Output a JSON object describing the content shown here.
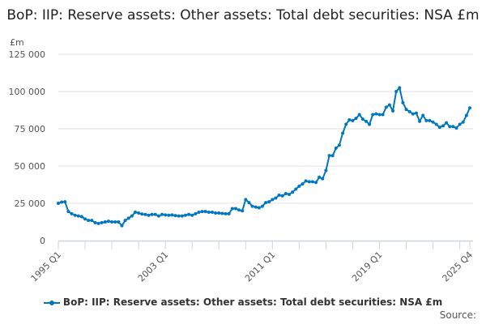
{
  "chart_data": {
    "type": "line",
    "title": "BoP: IIP: Reserve assets: Other assets: Total debt securities: NSA £m",
    "ylabel": "£m",
    "ylim": [
      0,
      125000
    ],
    "yticks": [
      0,
      25000,
      50000,
      75000,
      100000,
      125000
    ],
    "ytick_labels": [
      "0",
      "25 000",
      "50 000",
      "75 000",
      "100 000",
      "125 000"
    ],
    "xtick_labels": [
      "1995 Q1",
      "2003 Q1",
      "2011 Q1",
      "2019 Q1",
      "2025 Q4"
    ],
    "grid": true,
    "legend": "bottom",
    "color": "#0077c0",
    "series": [
      {
        "name": "BoP: IIP: Reserve assets: Other assets: Total debt securities: NSA £m",
        "start": "1995 Q1",
        "end": "2025 Q4",
        "values": [
          25000,
          25800,
          26000,
          19500,
          18000,
          17000,
          16500,
          16000,
          14500,
          13500,
          13500,
          12000,
          11500,
          12000,
          12500,
          13000,
          12500,
          12500,
          12500,
          10000,
          13500,
          15000,
          16500,
          19000,
          18500,
          17800,
          17500,
          17000,
          17500,
          17500,
          16500,
          17500,
          17200,
          17000,
          17200,
          16800,
          16500,
          16500,
          17000,
          17500,
          17000,
          18000,
          19000,
          19500,
          19500,
          19000,
          19000,
          18500,
          18500,
          18200,
          18000,
          18000,
          21500,
          21500,
          20500,
          20000,
          27500,
          25500,
          23000,
          22500,
          22000,
          23000,
          25500,
          26000,
          27500,
          28500,
          30500,
          30000,
          31500,
          31000,
          32500,
          34500,
          36500,
          38000,
          40000,
          39500,
          39500,
          39000,
          42500,
          41500,
          47000,
          57000,
          57000,
          62000,
          64000,
          72000,
          78000,
          81000,
          80500,
          82000,
          84500,
          81500,
          80000,
          78000,
          84500,
          85000,
          84500,
          84500,
          89500,
          91000,
          87000,
          100000,
          102500,
          92500,
          88000,
          86500,
          85000,
          85500,
          80000,
          84000,
          80500,
          80500,
          79500,
          78000,
          76000,
          77000,
          79000,
          76500,
          76500,
          75500,
          78000,
          79500,
          84000,
          89000
        ]
      }
    ]
  },
  "source_label": "Source:"
}
